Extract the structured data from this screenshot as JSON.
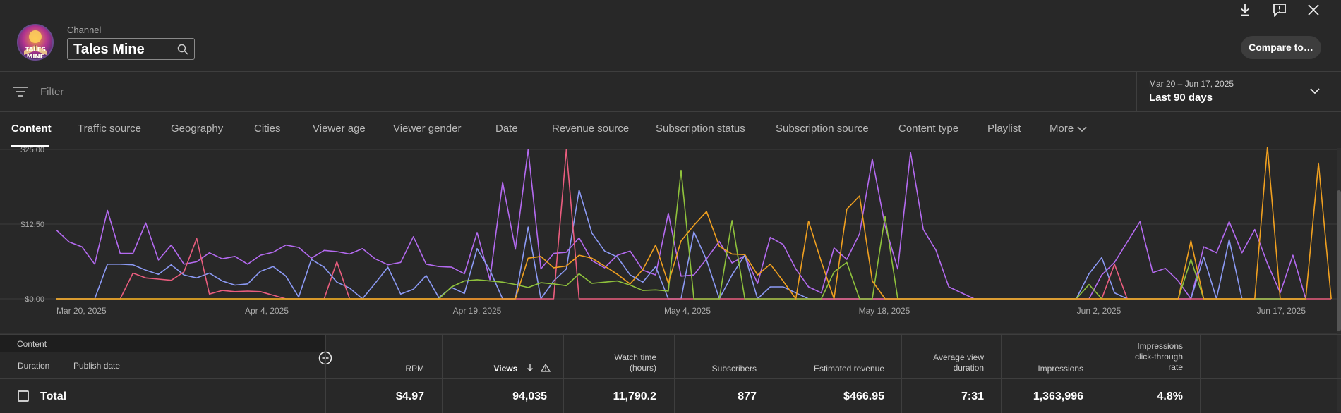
{
  "header": {
    "channel_label": "Channel",
    "channel_name": "Tales Mine",
    "logo_text": "TALES MINE",
    "compare_label": "Compare to…"
  },
  "filter": {
    "placeholder": "Filter"
  },
  "date_selector": {
    "range": "Mar 20 – Jun 17, 2025",
    "label": "Last 90 days"
  },
  "tabs": [
    "Content",
    "Traffic source",
    "Geography",
    "Cities",
    "Viewer age",
    "Viewer gender",
    "Date",
    "Revenue source",
    "Subscription status",
    "Subscription source",
    "Content type",
    "Playlist",
    "More"
  ],
  "chart_data": {
    "type": "line",
    "y_ticks": [
      "$25.00",
      "$12.50",
      "$0.00"
    ],
    "x_ticks": [
      "Mar 20, 2025",
      "Apr 4, 2025",
      "Apr 19, 2025",
      "May 4, 2025",
      "May 18, 2025",
      "Jun 2, 2025",
      "Jun 17, 2025"
    ],
    "ylim": [
      0,
      25
    ],
    "grid": true,
    "colors": {
      "purple": "#b46af0",
      "blue": "#8c9af5",
      "pink": "#ea5d7e",
      "green": "#8fc23c",
      "orange": "#f0a020"
    },
    "series": [
      {
        "color": "#b46af0",
        "values": [
          11.5,
          9.5,
          8.7,
          5.8,
          14.8,
          7.6,
          7.6,
          12.7,
          6.5,
          9,
          5.8,
          6.2,
          7.7,
          6.7,
          7.1,
          5.8,
          7.3,
          7.8,
          9,
          8.6,
          6.8,
          8.1,
          7.9,
          7.5,
          8.4,
          6.7,
          5.7,
          6.1,
          10.4,
          5.8,
          5.4,
          5.3,
          4.2,
          11.1,
          3.2,
          19.5,
          8.3,
          25,
          5,
          7.6,
          7.8,
          10.2,
          6.4,
          5.2,
          7.3,
          8,
          4.8,
          4,
          14.3,
          3.8,
          4,
          6.7,
          9.6,
          6,
          7.2,
          2.6,
          10.3,
          9.1,
          5,
          2,
          1,
          8.5,
          6.6,
          10.9,
          23.4,
          12.2,
          5,
          24.5,
          11.6,
          8.1,
          2,
          1,
          0,
          0,
          0,
          0,
          0,
          0,
          0,
          0,
          0,
          0,
          4,
          6.1,
          9.5,
          12.9,
          4.4,
          5.1,
          3,
          0,
          8.7,
          7.7,
          12.9,
          7.7,
          11.6,
          5.9,
          1,
          7.3,
          0
        ]
      },
      {
        "color": "#8c9af5",
        "values": [
          0,
          0,
          0,
          0,
          5.8,
          5.8,
          5.7,
          4.8,
          4.1,
          5.7,
          4,
          3.5,
          4.3,
          3,
          2.3,
          2.5,
          4.6,
          5.4,
          3.8,
          0.3,
          6.6,
          5.3,
          2.8,
          1.8,
          0,
          2.6,
          5.3,
          0.8,
          1.6,
          3.9,
          0.2,
          1.9,
          0.9,
          8.4,
          4.8,
          0,
          0,
          12,
          0,
          3,
          5,
          18.2,
          11,
          8,
          7,
          4,
          2.8,
          5.4,
          0,
          0,
          11.2,
          6.5,
          0,
          4,
          7.3,
          0,
          2,
          2,
          1,
          0,
          0,
          0,
          0,
          0,
          0,
          0,
          0,
          0,
          0,
          0,
          0,
          0,
          0,
          0,
          0,
          0,
          0,
          0,
          0,
          0,
          0,
          4.2,
          6.9,
          1,
          0,
          0,
          0,
          0,
          0,
          0,
          7,
          0,
          9.9,
          0,
          0,
          0,
          0,
          0,
          0
        ]
      },
      {
        "color": "#ea5d7e",
        "values": [
          0,
          0,
          0,
          0,
          0,
          0,
          4.3,
          3.5,
          3.3,
          3.1,
          4.5,
          10.1,
          0.8,
          1.4,
          1.2,
          1.3,
          1.2,
          0.6,
          0,
          0,
          0,
          0,
          6.2,
          0,
          0,
          0,
          0,
          0,
          0,
          0,
          0,
          0,
          0,
          0,
          0,
          0,
          0,
          0,
          0,
          0,
          25,
          0,
          0,
          0,
          0,
          0,
          0,
          0,
          0,
          0,
          0,
          0,
          0,
          0,
          0,
          0,
          0,
          0,
          0,
          0,
          0,
          0,
          0,
          0,
          0,
          0,
          0,
          0,
          0,
          0,
          0,
          0,
          0,
          0,
          0,
          0,
          0,
          0,
          0,
          0,
          0,
          0,
          0,
          5.8,
          0,
          0,
          0,
          0,
          0,
          0,
          0,
          0,
          0,
          0,
          0,
          0,
          0,
          0,
          0,
          0,
          0
        ]
      },
      {
        "color": "#8fc23c",
        "values": [
          0,
          0,
          0,
          0,
          0,
          0,
          0,
          0,
          0,
          0,
          0,
          0,
          0,
          0,
          0,
          0,
          0,
          0,
          0,
          0,
          0,
          0,
          0,
          0,
          0,
          0,
          0,
          0,
          0,
          0,
          0,
          2,
          3,
          3.2,
          3,
          2.8,
          2.4,
          1.9,
          2.7,
          2.5,
          2.2,
          4.2,
          2.6,
          2.8,
          3,
          2.3,
          1.4,
          1.5,
          1.3,
          21.5,
          0,
          0,
          0,
          13.1,
          0,
          0,
          0,
          0,
          0,
          0,
          0,
          4.5,
          6.1,
          0,
          0,
          13.8,
          0,
          0,
          0,
          0,
          0,
          0,
          0,
          0,
          0,
          0,
          0,
          0,
          0,
          0,
          0,
          2.4,
          0,
          0,
          0,
          0,
          0,
          0,
          0,
          6.6,
          0,
          0,
          0,
          0,
          0,
          0,
          0,
          0,
          0
        ]
      },
      {
        "color": "#f0a020",
        "values": [
          0,
          0,
          0,
          0,
          0,
          0,
          0,
          0,
          0,
          0,
          0,
          0,
          0,
          0,
          0,
          0,
          0,
          0,
          0,
          0,
          0,
          0,
          0,
          0,
          0,
          0,
          0,
          0,
          0,
          0,
          0,
          0,
          0,
          0,
          0,
          0,
          0,
          6.8,
          7.1,
          5.2,
          5.5,
          7.3,
          6.8,
          5.5,
          4.1,
          2.5,
          4.9,
          9,
          2.6,
          9.7,
          12.3,
          14.6,
          8.8,
          7.5,
          7.4,
          4,
          5.8,
          3,
          0,
          13,
          6.2,
          0,
          15,
          17.2,
          3,
          0,
          0,
          0,
          0,
          0,
          0,
          0,
          0,
          0,
          0,
          0,
          0,
          0,
          0,
          0,
          0,
          0,
          0,
          0,
          0,
          0,
          0,
          0,
          0,
          9.7,
          0,
          0,
          0,
          0,
          0,
          25.5,
          0,
          0,
          0,
          22.7,
          0
        ]
      }
    ]
  },
  "table": {
    "content_label": "Content",
    "duration_label": "Duration",
    "publish_date_label": "Publish date",
    "columns": [
      {
        "label": "RPM",
        "value": "$4.97"
      },
      {
        "label": "Views",
        "value": "94,035"
      },
      {
        "label": "Watch time\n(hours)",
        "value": "11,790.2"
      },
      {
        "label": "Subscribers",
        "value": "877"
      },
      {
        "label": "Estimated revenue",
        "value": "$466.95"
      },
      {
        "label": "Average view\nduration",
        "value": "7:31"
      },
      {
        "label": "Impressions",
        "value": "1,363,996"
      },
      {
        "label": "Impressions\nclick-through\nrate",
        "value": "4.8%"
      }
    ],
    "total_label": "Total"
  }
}
